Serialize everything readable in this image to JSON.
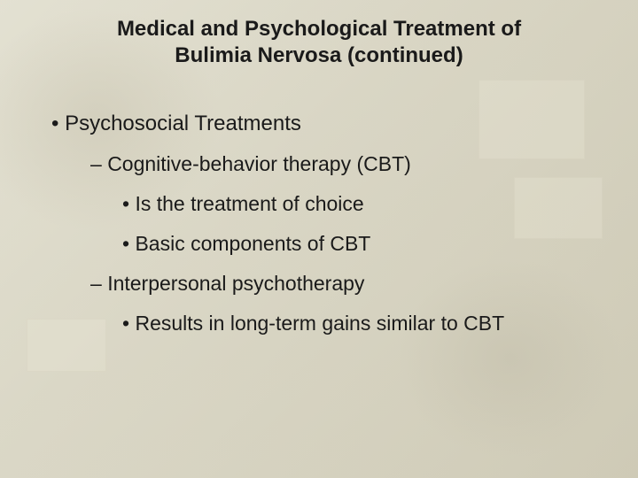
{
  "slide": {
    "title_line1": "Medical and Psychological Treatment of",
    "title_line2": "Bulimia Nervosa (continued)",
    "items": {
      "l1": "Psychosocial Treatments",
      "l2a": "Cognitive-behavior therapy (CBT)",
      "l3a": "Is the treatment of choice",
      "l3b": "Basic components of CBT",
      "l2b": "Interpersonal psychotherapy",
      "l3c": "Results in long-term gains similar to CBT"
    },
    "colors": {
      "text": "#1a1a1a",
      "bg_light": "#e8e6d8",
      "bg_mid": "#dcd9c8",
      "bg_dark": "#d0ccb8"
    },
    "fonts": {
      "title_size_pt": 24,
      "body_size_pt": 23,
      "family": "Arial"
    }
  }
}
